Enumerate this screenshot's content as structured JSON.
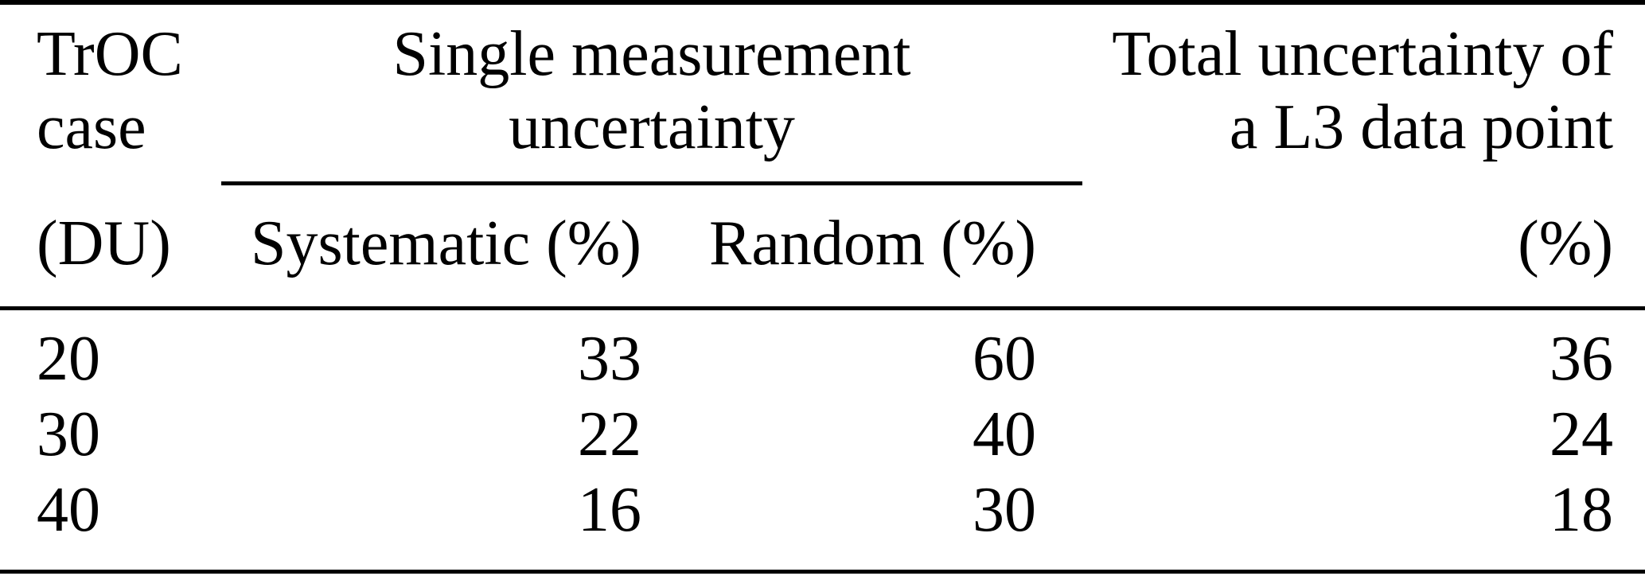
{
  "header": {
    "col1": {
      "line1": "TrOC",
      "line2": "case",
      "sub": "(DU)"
    },
    "group": {
      "line1": "Single measurement",
      "line2": "uncertainty"
    },
    "col2_sub": "Systematic (%)",
    "col3_sub": "Random (%)",
    "col4": {
      "line1": "Total uncertainty of",
      "line2": "a L3 data point",
      "sub": "(%)"
    }
  },
  "rows": [
    {
      "case": "20",
      "systematic": "33",
      "random": "60",
      "total": "36"
    },
    {
      "case": "30",
      "systematic": "22",
      "random": "40",
      "total": "24"
    },
    {
      "case": "40",
      "systematic": "16",
      "random": "30",
      "total": "18"
    }
  ],
  "colors": {
    "text": "#000000",
    "rule": "#000000",
    "background": "#ffffff"
  }
}
